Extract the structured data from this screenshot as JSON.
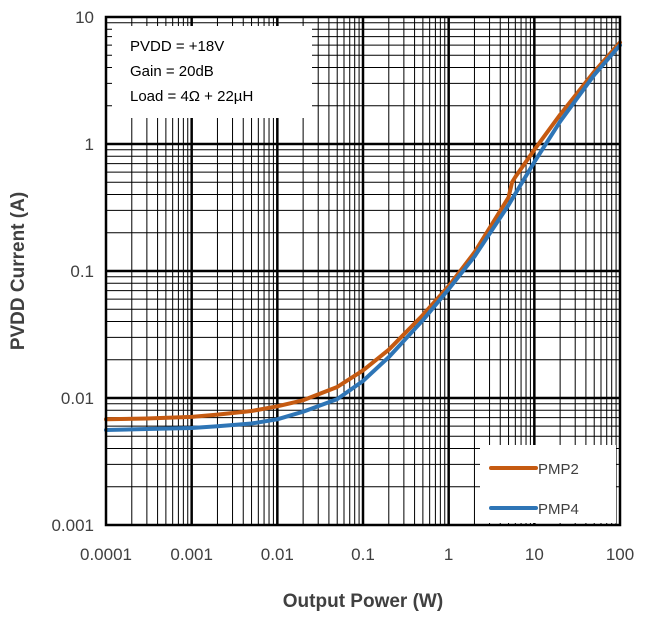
{
  "chart_data": {
    "type": "line",
    "xlabel": "Output Power (W)",
    "ylabel": "PVDD Current (A)",
    "x_scale": "log",
    "y_scale": "log",
    "xlim": [
      0.0001,
      100
    ],
    "ylim": [
      0.001,
      10
    ],
    "x_ticks": [
      "0.0001",
      "0.001",
      "0.01",
      "0.1",
      "1",
      "10",
      "100"
    ],
    "y_ticks": [
      "0.001",
      "0.01",
      "0.1",
      "1",
      "10"
    ],
    "grid": true,
    "minor_grid": true,
    "legend_position": "bottom-right",
    "annotation": [
      "PVDD = +18V",
      "Gain = 20dB",
      "Load = 4Ω + 22µH"
    ],
    "series": [
      {
        "name": "PMP2",
        "color": "#C55A11",
        "x": [
          0.0001,
          0.0003,
          0.001,
          0.002,
          0.005,
          0.01,
          0.02,
          0.05,
          0.1,
          0.2,
          0.5,
          1,
          2,
          5,
          5.5,
          6,
          10,
          20,
          50,
          100
        ],
        "y": [
          0.0068,
          0.0069,
          0.0071,
          0.0074,
          0.0079,
          0.0086,
          0.0096,
          0.0122,
          0.0165,
          0.024,
          0.045,
          0.076,
          0.14,
          0.38,
          0.5,
          0.55,
          0.9,
          1.7,
          3.7,
          6.3
        ]
      },
      {
        "name": "PMP4",
        "color": "#2E75B6",
        "x": [
          0.0001,
          0.0003,
          0.001,
          0.002,
          0.005,
          0.01,
          0.02,
          0.05,
          0.1,
          0.2,
          0.5,
          1,
          2,
          5,
          10,
          20,
          50,
          100
        ],
        "y": [
          0.0056,
          0.0057,
          0.0058,
          0.006,
          0.0063,
          0.0068,
          0.0078,
          0.0098,
          0.0136,
          0.021,
          0.041,
          0.072,
          0.13,
          0.33,
          0.72,
          1.5,
          3.5,
          6.0
        ]
      }
    ]
  }
}
